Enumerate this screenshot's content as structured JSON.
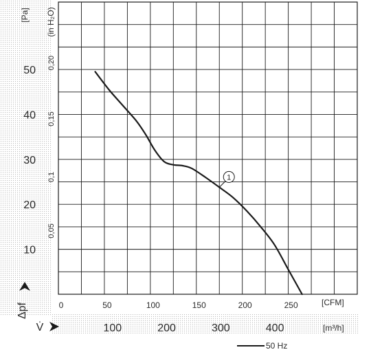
{
  "chart_data": {
    "type": "line",
    "title": "",
    "pressure_axis": {
      "unit": "[Pa]",
      "alt_unit": "(in H₂O)",
      "ticks_pa": [
        {
          "value": 50,
          "label": "50"
        },
        {
          "value": 40,
          "label": "40"
        },
        {
          "value": 30,
          "label": "30"
        },
        {
          "value": 20,
          "label": "20"
        },
        {
          "value": 10,
          "label": "10"
        }
      ],
      "ticks_inh2o": [
        {
          "value": 0.2,
          "label": "0,20"
        },
        {
          "value": 0.15,
          "label": "0,15"
        },
        {
          "value": 0.1,
          "label": "0,1"
        },
        {
          "value": 0.05,
          "label": "0,05"
        }
      ],
      "symbol": "Δpf",
      "ylim_pa": [
        0,
        65
      ]
    },
    "flow_axis": {
      "unit_cfm": "[CFM]",
      "unit_m3h": "[m³/h]",
      "symbol": "V̇",
      "ticks_cfm": [
        {
          "value": 0,
          "label": "0"
        },
        {
          "value": 50,
          "label": "50"
        },
        {
          "value": 100,
          "label": "100"
        },
        {
          "value": 150,
          "label": "150"
        },
        {
          "value": 200,
          "label": "200"
        },
        {
          "value": 250,
          "label": "250"
        }
      ],
      "ticks_m3h": [
        {
          "value": 100,
          "label": "100"
        },
        {
          "value": 200,
          "label": "200"
        },
        {
          "value": 300,
          "label": "300"
        },
        {
          "value": 400,
          "label": "400"
        }
      ],
      "xlim_cfm": [
        0,
        325
      ]
    },
    "series": [
      {
        "name": "50 Hz",
        "curve_label": "1",
        "x_cfm": [
          40,
          55,
          70,
          85,
          95,
          105,
          115,
          125,
          135,
          145,
          160,
          175,
          190,
          205,
          220,
          235,
          250,
          265
        ],
        "y_pa": [
          49.5,
          45.5,
          42,
          38.5,
          35.5,
          32,
          29.5,
          28.8,
          28.6,
          28,
          26,
          23.8,
          21.5,
          18.5,
          15,
          11,
          5.5,
          0
        ]
      }
    ],
    "grid": true,
    "legend": {
      "position": "bottom-right",
      "label": "50 Hz"
    }
  }
}
